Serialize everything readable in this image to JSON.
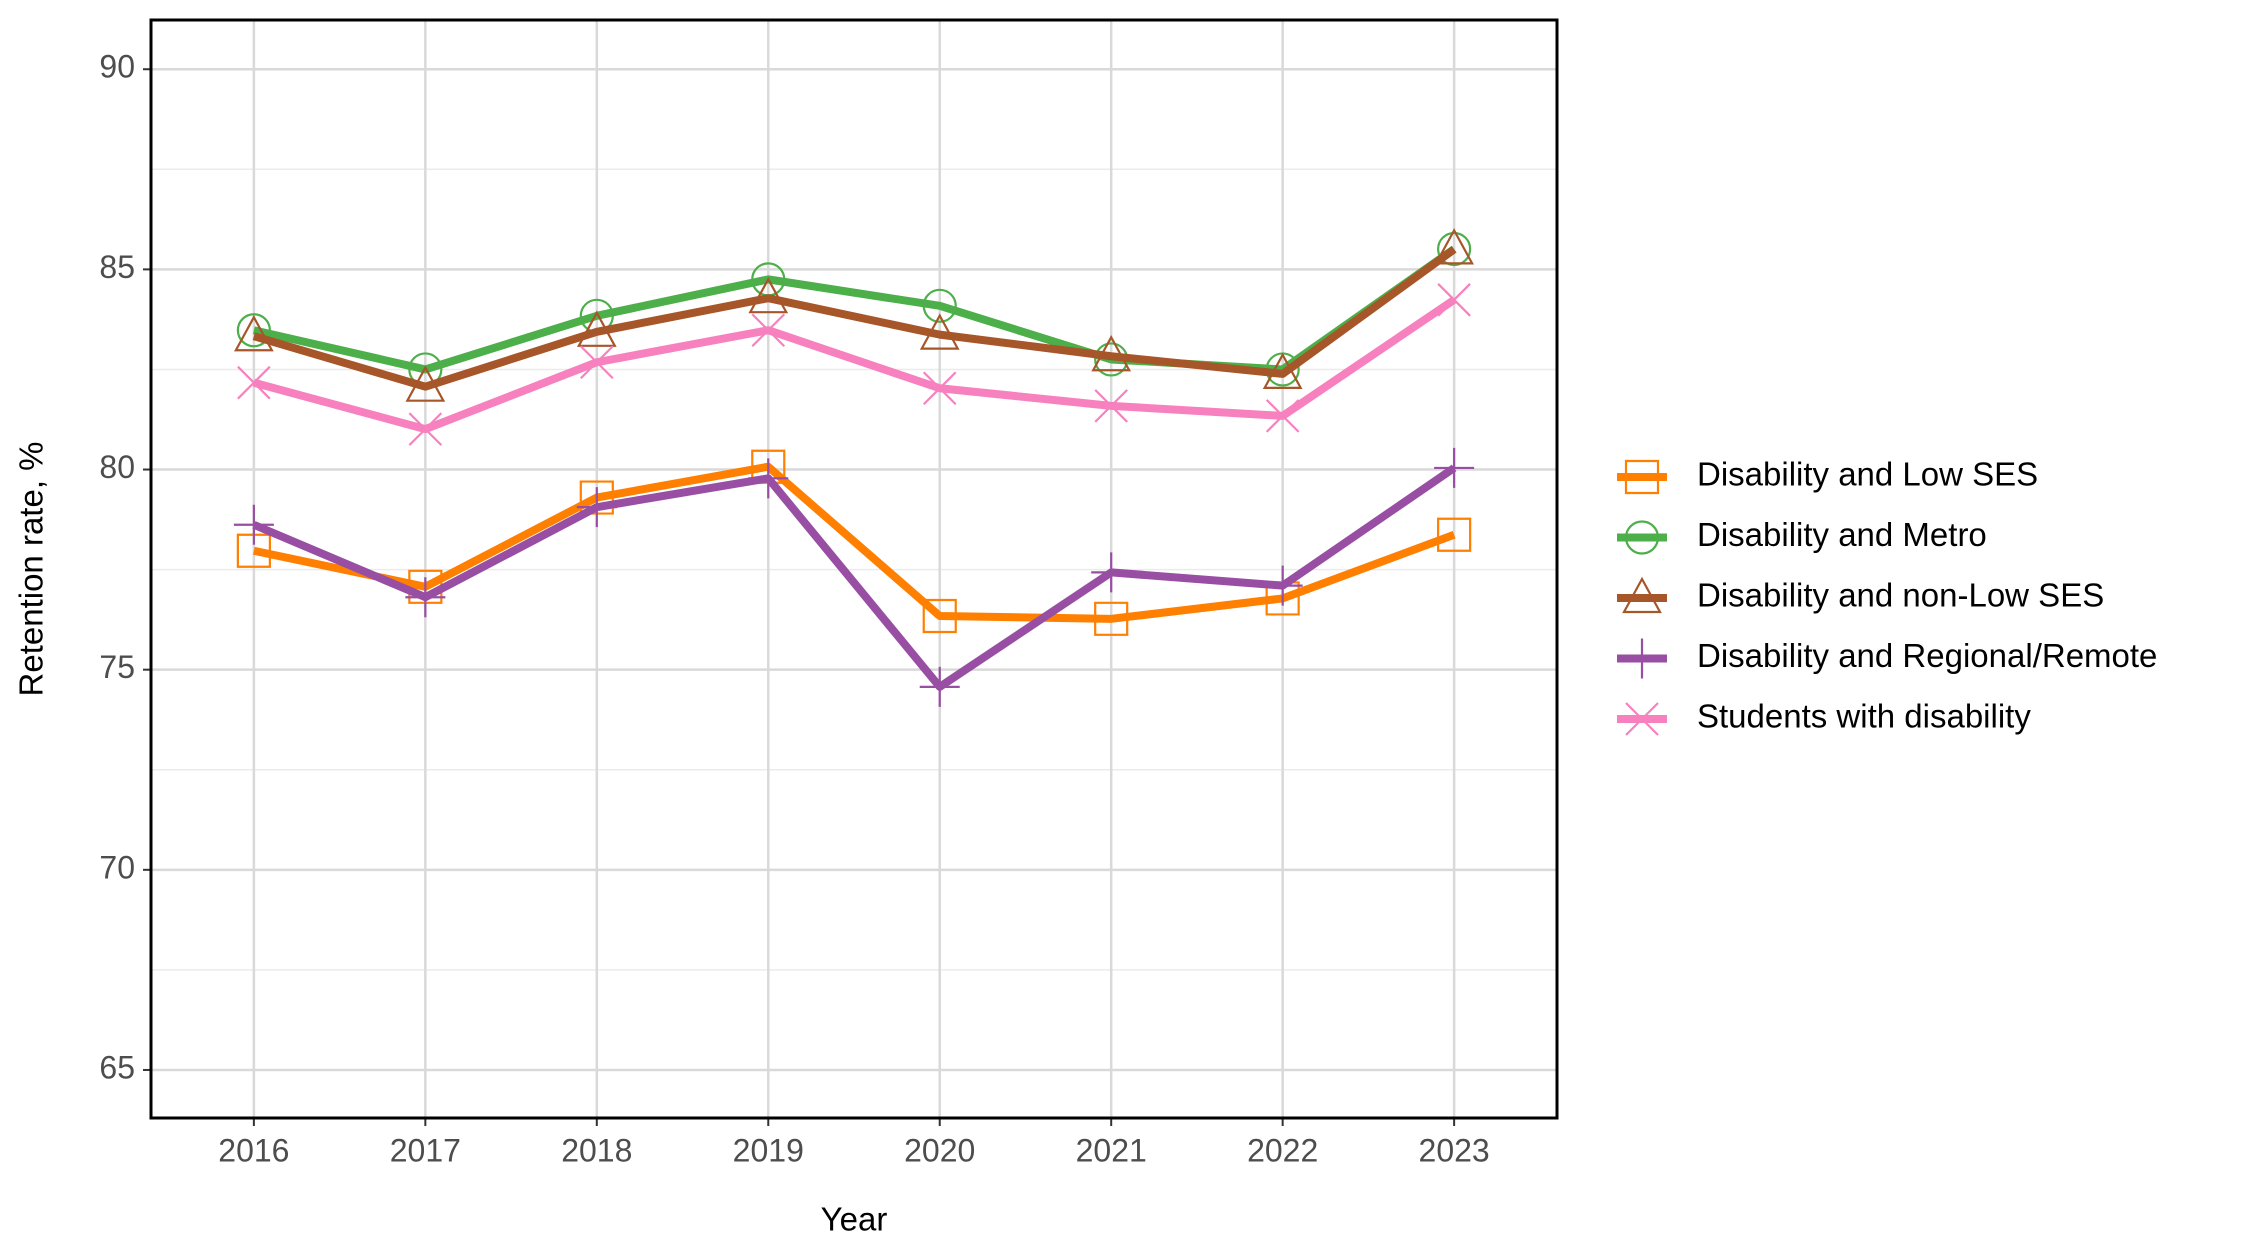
{
  "chart_data": {
    "type": "line",
    "x_label": "Year",
    "y_label": "Retention rate, %",
    "categories": [
      "2016",
      "2017",
      "2018",
      "2019",
      "2020",
      "2021",
      "2022",
      "2023"
    ],
    "ylim": [
      63.8,
      91.23
    ],
    "yticks": [
      65,
      70,
      75,
      80,
      85,
      90
    ],
    "y_minor_ticks": [
      67.5,
      72.5,
      77.5,
      82.5,
      87.5
    ],
    "grid": true,
    "legend_position": "right",
    "series": [
      {
        "name": "Disability and Low SES",
        "color": "#ff7f00",
        "marker": "square",
        "values": [
          77.97,
          77.07,
          79.3,
          80.07,
          76.34,
          76.27,
          76.78,
          78.37
        ]
      },
      {
        "name": "Disability and Metro",
        "color": "#4daf4a",
        "marker": "circle",
        "values": [
          83.48,
          82.5,
          83.84,
          84.75,
          84.09,
          82.75,
          82.5,
          85.51
        ]
      },
      {
        "name": "Disability and non-Low SES",
        "color": "#a65628",
        "marker": "triangle",
        "values": [
          83.33,
          82.07,
          83.44,
          84.28,
          83.37,
          82.83,
          82.39,
          85.5
        ]
      },
      {
        "name": "Disability and Regional/Remote",
        "color": "#984ea3",
        "marker": "plus",
        "values": [
          78.62,
          76.81,
          79.06,
          79.78,
          74.57,
          77.43,
          77.1,
          80.04
        ]
      },
      {
        "name": "Students with disability",
        "color": "#f781bf",
        "marker": "cross",
        "values": [
          82.17,
          81.01,
          82.68,
          83.48,
          82.03,
          81.59,
          81.34,
          84.24
        ]
      }
    ]
  }
}
